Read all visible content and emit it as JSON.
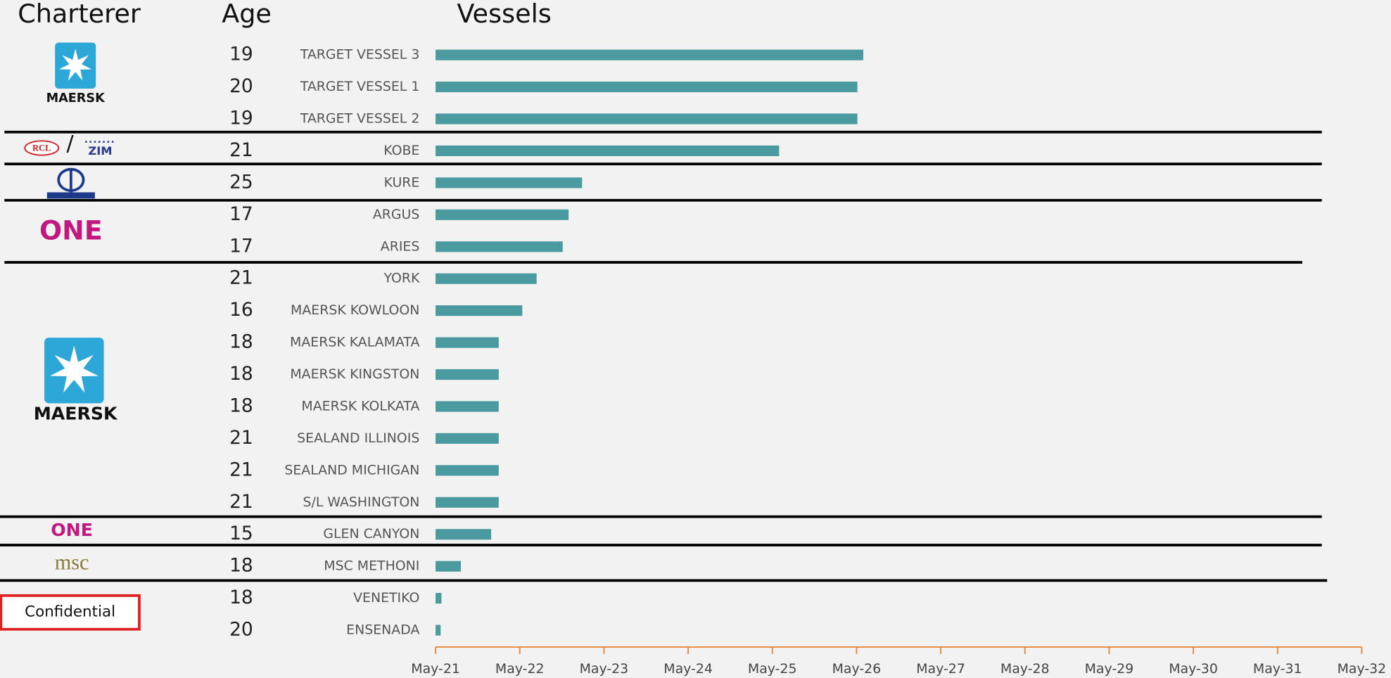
{
  "chart_data": {
    "type": "bar",
    "headers": {
      "charterer": "Charterer",
      "age": "Age",
      "vessels": "Vessels"
    },
    "categories": [
      "TARGET VESSEL 3",
      "TARGET VESSEL 1",
      "TARGET VESSEL 2",
      "KOBE",
      "KURE",
      "ARGUS",
      "ARIES",
      "YORK",
      "MAERSK KOWLOON",
      "MAERSK KALAMATA",
      "MAERSK KINGSTON",
      "MAERSK KOLKATA",
      "SEALAND ILLINOIS",
      "SEALAND MICHIGAN",
      "S/L WASHINGTON",
      "GLEN CANYON",
      "MSC METHONI",
      "VENETIKO",
      "ENSENADA"
    ],
    "ages": [
      19,
      20,
      19,
      21,
      25,
      17,
      17,
      21,
      16,
      18,
      18,
      18,
      21,
      21,
      21,
      15,
      18,
      18,
      20
    ],
    "values": [
      2026.41,
      2026.34,
      2026.34,
      2025.41,
      2023.07,
      2022.91,
      2022.84,
      2022.53,
      2022.36,
      2022.08,
      2022.08,
      2022.08,
      2022.08,
      2022.08,
      2022.08,
      2021.99,
      2021.63,
      2021.4,
      2021.39
    ],
    "color": "#4a9aa0",
    "axis_color": "#e8893a",
    "xlim": [
      2021.33,
      2032.33
    ],
    "xticks": [
      {
        "value": 2021.33,
        "label": "May-21"
      },
      {
        "value": 2022.33,
        "label": "May-22"
      },
      {
        "value": 2023.33,
        "label": "May-23"
      },
      {
        "value": 2024.33,
        "label": "May-24"
      },
      {
        "value": 2025.33,
        "label": "May-25"
      },
      {
        "value": 2026.33,
        "label": "May-26"
      },
      {
        "value": 2027.33,
        "label": "May-27"
      },
      {
        "value": 2028.33,
        "label": "May-28"
      },
      {
        "value": 2029.33,
        "label": "May-29"
      },
      {
        "value": 2030.33,
        "label": "May-30"
      },
      {
        "value": 2031.33,
        "label": "May-31"
      },
      {
        "value": 2032.33,
        "label": "May-32"
      }
    ]
  },
  "logos": {
    "maersk_1": "MAERSK",
    "rcl": "RCL",
    "slash": "/",
    "zim": "ZIM",
    "one_1": "ONE",
    "maersk_2": "MAERSK",
    "one_2": "ONE",
    "msc": "msc",
    "confidential": "Confidential"
  }
}
